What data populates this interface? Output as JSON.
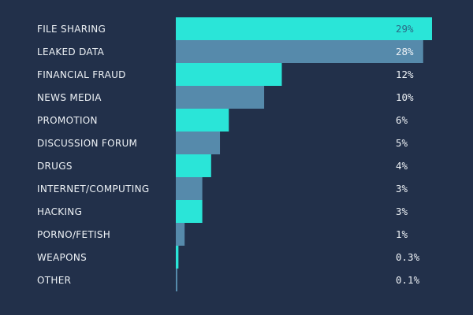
{
  "chart_data": {
    "type": "bar",
    "orientation": "horizontal",
    "categories": [
      "FILE SHARING",
      "LEAKED DATA",
      "FINANCIAL FRAUD",
      "NEWS MEDIA",
      "PROMOTION",
      "DISCUSSION FORUM",
      "DRUGS",
      "INTERNET/COMPUTING",
      "HACKING",
      "PORNO/FETISH",
      "WEAPONS",
      "OTHER"
    ],
    "values": [
      29,
      28,
      12,
      10,
      6,
      5,
      4,
      3,
      3,
      1,
      0.3,
      0.1
    ],
    "value_labels": [
      "29%",
      "28%",
      "12%",
      "10%",
      "6%",
      "5%",
      "4%",
      "3%",
      "3%",
      "1%",
      "0.3%",
      "0.1%"
    ],
    "xlim": [
      0,
      29
    ],
    "grid": false,
    "colors": {
      "background": "#22304a",
      "bar_odd": "#2ae5d8",
      "bar_even": "#568aab",
      "label": "#eef2f6",
      "value_inside_bar": "#2a6a86"
    }
  }
}
